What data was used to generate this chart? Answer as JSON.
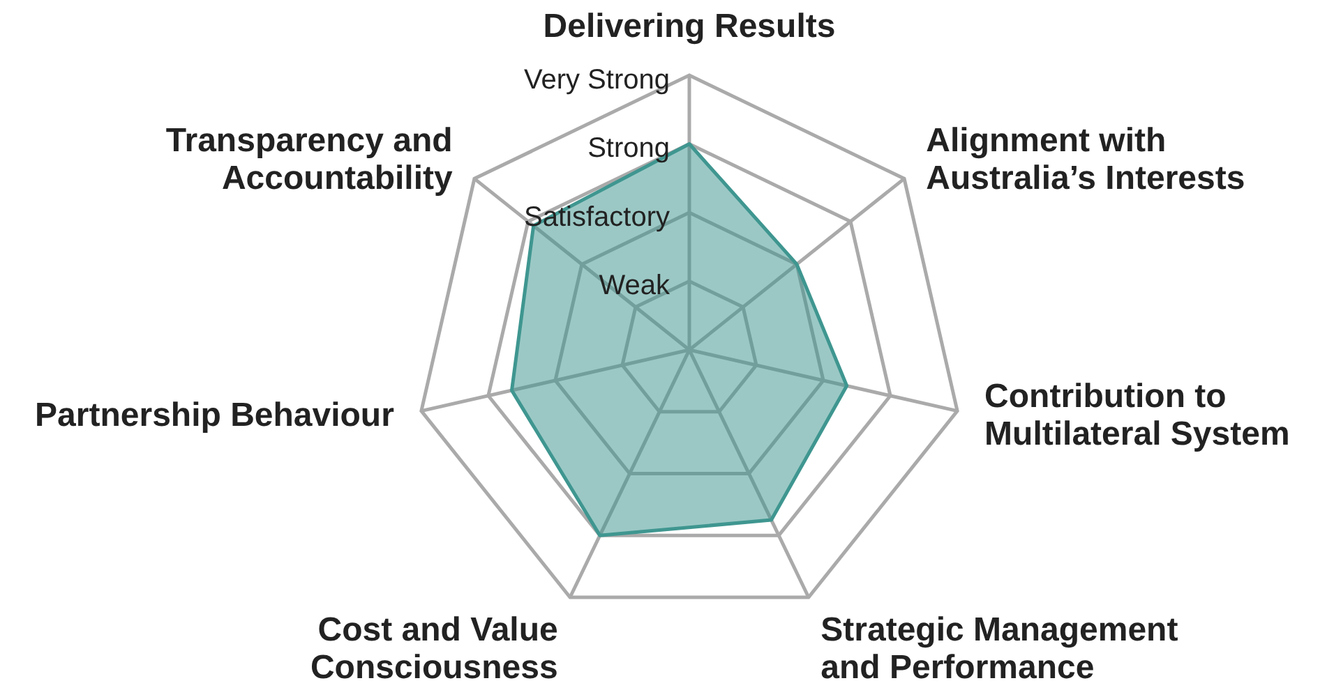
{
  "chart_data": {
    "type": "radar",
    "categories": [
      "Delivering Results",
      "Alignment with Australia’s Interests",
      "Contribution to Multilateral System",
      "Strategic Management and Performance",
      "Cost and Value Consciousness",
      "Partnership Behaviour",
      "Transparency and Accountability"
    ],
    "series": [
      {
        "color": "#3f9690",
        "values": [
          3.0,
          2.0,
          2.35,
          2.75,
          3.0,
          2.65,
          2.9
        ]
      }
    ],
    "ylim": [
      0,
      4
    ],
    "yticks": [
      {
        "value": 1,
        "label": "Weak"
      },
      {
        "value": 2,
        "label": "Satisfactory"
      },
      {
        "value": 3,
        "label": "Strong"
      },
      {
        "value": 4,
        "label": "Very Strong"
      }
    ]
  }
}
